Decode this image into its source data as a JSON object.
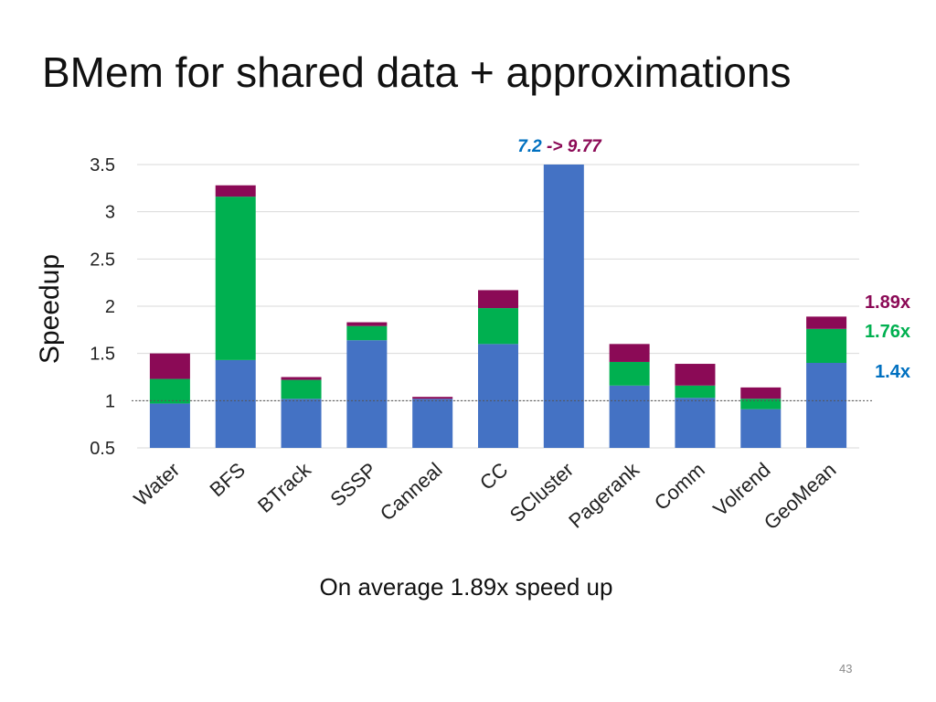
{
  "slide": {
    "title": "BMem for shared data + approximations",
    "caption": "On average 1.89x speed up",
    "page_number": "43"
  },
  "colors": {
    "base": "#4472C4",
    "approx": "#00B050",
    "shared": "#8B0A56",
    "grid": "#d9d9d9",
    "baseline": "#555555"
  },
  "chart_data": {
    "type": "bar",
    "stacked": true,
    "ylabel": "Speedup",
    "ylim": [
      0.5,
      3.5
    ],
    "yticks": [
      "0.5",
      "1",
      "1.5",
      "2",
      "2.5",
      "3",
      "3.5"
    ],
    "grid": true,
    "reference_line": 1,
    "categories": [
      "Water",
      "BFS",
      "BTrack",
      "SSSP",
      "Canneal",
      "CC",
      "SCluster",
      "Pagerank",
      "Comm",
      "Volrend",
      "GeoMean"
    ],
    "series": [
      {
        "key": "base",
        "cumulative": [
          0.97,
          1.43,
          1.02,
          1.64,
          1.02,
          1.6,
          3.5,
          1.16,
          1.03,
          0.91,
          1.4
        ]
      },
      {
        "key": "approx",
        "cumulative": [
          1.23,
          3.16,
          1.22,
          1.79,
          1.02,
          1.98,
          3.5,
          1.41,
          1.16,
          1.02,
          1.76
        ]
      },
      {
        "key": "shared",
        "cumulative": [
          1.5,
          3.28,
          1.25,
          1.83,
          1.04,
          2.17,
          3.5,
          1.6,
          1.39,
          1.14,
          1.89
        ]
      }
    ],
    "annotations": {
      "scluster_break": {
        "from": "7.2",
        "arrow": "->",
        "to": "9.77"
      },
      "geomean_labels": [
        "1.89x",
        "1.76x",
        "1.4x"
      ]
    }
  }
}
